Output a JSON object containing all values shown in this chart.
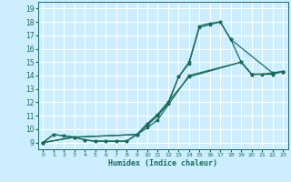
{
  "title": "",
  "xlabel": "Humidex (Indice chaleur)",
  "bg_color": "#cceeff",
  "grid_color": "#ffffff",
  "line_color": "#1a6b5a",
  "xlim": [
    -0.5,
    23.5
  ],
  "ylim": [
    8.5,
    19.5
  ],
  "xticks": [
    0,
    1,
    2,
    3,
    4,
    5,
    6,
    7,
    8,
    9,
    10,
    11,
    12,
    13,
    14,
    15,
    16,
    17,
    18,
    19,
    20,
    21,
    22,
    23
  ],
  "yticks": [
    9,
    10,
    11,
    12,
    13,
    14,
    15,
    16,
    17,
    18,
    19
  ],
  "line1_x": [
    0,
    1,
    2,
    3,
    4,
    5,
    6,
    7,
    8,
    9,
    10,
    11,
    12,
    13,
    14,
    15,
    16,
    17,
    18,
    19,
    20,
    21,
    22,
    23
  ],
  "line1_y": [
    9,
    9.6,
    9.5,
    9.4,
    9.2,
    9.1,
    9.1,
    9.1,
    9.1,
    9.6,
    10.4,
    11.1,
    12.0,
    13.9,
    15.0,
    17.7,
    17.9,
    18.0,
    16.7,
    15.0,
    14.1,
    14.1,
    14.2,
    14.3
  ],
  "line2_x": [
    0,
    1,
    2,
    3,
    4,
    5,
    6,
    7,
    8,
    9,
    10,
    11,
    12,
    13,
    14,
    15,
    16,
    17,
    18,
    22,
    23
  ],
  "line2_y": [
    9,
    9.6,
    9.5,
    9.4,
    9.2,
    9.1,
    9.1,
    9.1,
    9.1,
    9.6,
    10.3,
    11.0,
    11.9,
    13.9,
    14.9,
    17.6,
    17.8,
    18.0,
    16.7,
    14.2,
    14.3
  ],
  "line3_x": [
    0,
    3,
    9,
    10,
    11,
    14,
    19,
    20,
    22,
    23
  ],
  "line3_y": [
    9,
    9.4,
    9.6,
    10.1,
    10.7,
    14.0,
    15.0,
    14.1,
    14.1,
    14.3
  ],
  "line4_x": [
    0,
    3,
    9,
    10,
    11,
    14,
    19,
    20,
    22,
    23
  ],
  "line4_y": [
    9,
    9.4,
    9.6,
    10.4,
    11.1,
    13.9,
    15.0,
    14.1,
    14.1,
    14.3
  ]
}
